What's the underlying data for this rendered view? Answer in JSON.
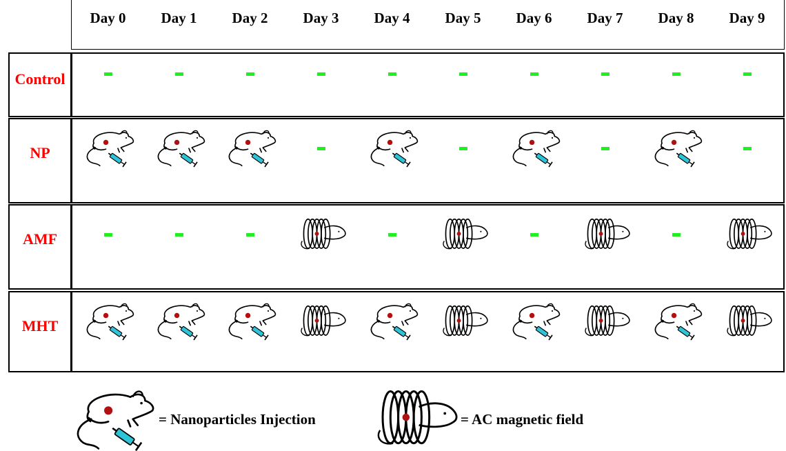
{
  "days": [
    "Day 0",
    "Day 1",
    "Day 2",
    "Day 3",
    "Day 4",
    "Day 5",
    "Day 6",
    "Day 7",
    "Day 8",
    "Day 9"
  ],
  "rows": [
    {
      "label": "Control",
      "cells": [
        "dash",
        "dash",
        "dash",
        "dash",
        "dash",
        "dash",
        "dash",
        "dash",
        "dash",
        "dash"
      ]
    },
    {
      "label": "NP",
      "cells": [
        "mouse-injection",
        "mouse-injection",
        "mouse-injection",
        "dash",
        "mouse-injection",
        "dash",
        "mouse-injection",
        "dash",
        "mouse-injection",
        "dash"
      ]
    },
    {
      "label": "AMF",
      "cells": [
        "dash",
        "dash",
        "dash",
        "magnetic-coil",
        "dash",
        "magnetic-coil",
        "dash",
        "magnetic-coil",
        "dash",
        "magnetic-coil"
      ]
    },
    {
      "label": "MHT",
      "cells": [
        "mouse-injection",
        "mouse-injection",
        "mouse-injection",
        "magnetic-coil",
        "mouse-injection",
        "magnetic-coil",
        "mouse-injection",
        "magnetic-coil",
        "mouse-injection",
        "magnetic-coil"
      ]
    }
  ],
  "symbols": {
    "dash": "-"
  },
  "legend": {
    "injection": "= Nanoparticles Injection",
    "magnetic": "= AC magnetic field"
  },
  "colors": {
    "label": "#ff0000",
    "dash": "#22ee22",
    "syringe": "#2ec4d8",
    "tumor": "#b01010"
  }
}
